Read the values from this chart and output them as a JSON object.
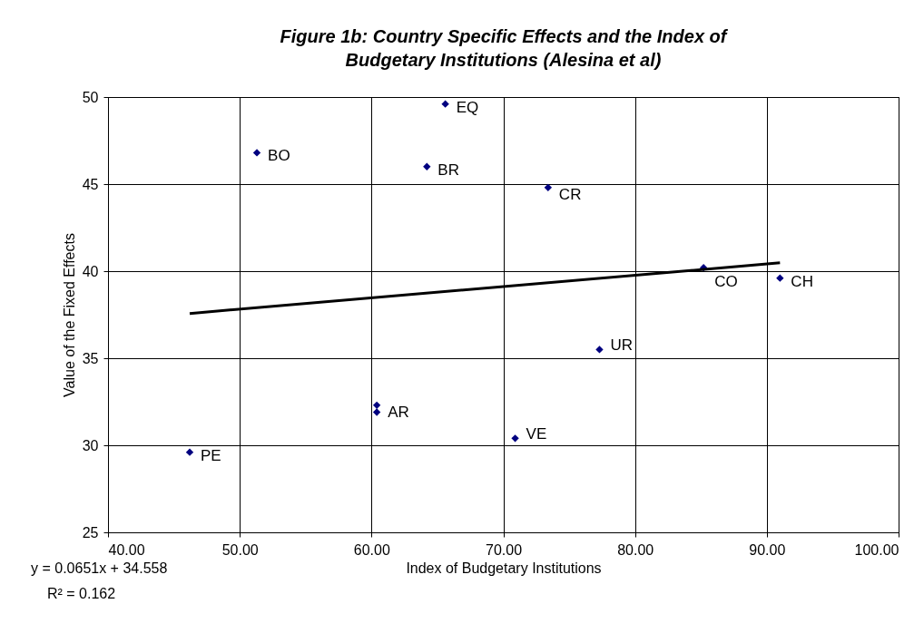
{
  "chart_data": {
    "type": "scatter",
    "title": "Figure 1b: Country Specific Effects and the Index of  Budgetary Institutions (Alesina et al)",
    "xlabel": "Index of Budgetary Institutions",
    "ylabel": "Value of the Fixed Effects",
    "series": [
      {
        "type": "scatter",
        "color": "#000080",
        "marker": "diamond",
        "x": [
          65.6,
          51.3,
          64.2,
          73.4,
          85.2,
          91.0,
          77.3,
          60.4,
          60.4,
          70.9,
          46.2
        ],
        "values": [
          49.6,
          46.8,
          46.0,
          44.8,
          40.2,
          39.6,
          35.5,
          32.3,
          31.9,
          30.4,
          29.6
        ]
      },
      {
        "type": "line",
        "color": "#000000",
        "line_style": "solid",
        "x": [
          46.2,
          91.0
        ],
        "values": [
          37.57,
          40.48
        ]
      }
    ],
    "xlim": [
      40,
      100
    ],
    "xticks": [
      {
        "value": 40,
        "label": "40.00"
      },
      {
        "value": 50,
        "label": "50.00"
      },
      {
        "value": 60,
        "label": "60.00"
      },
      {
        "value": 70,
        "label": "70.00"
      },
      {
        "value": 80,
        "label": "80.00"
      },
      {
        "value": 90,
        "label": "90.00"
      },
      {
        "value": 100,
        "label": "100.00"
      }
    ],
    "ylim": [
      25,
      50
    ],
    "yticks": [
      25,
      30,
      35,
      40,
      45,
      50
    ],
    "grid": true,
    "annotations": [
      {
        "text": "EQ",
        "x": 65.6,
        "y": 49.6
      },
      {
        "text": "BO",
        "x": 51.3,
        "y": 46.8
      },
      {
        "text": "BR",
        "x": 64.2,
        "y": 46.0
      },
      {
        "text": "CR",
        "x": 73.4,
        "y": 44.8
      },
      {
        "text": "CO",
        "x": 85.2,
        "y": 40.2
      },
      {
        "text": "CH",
        "x": 91.0,
        "y": 39.6
      },
      {
        "text": "UR",
        "x": 77.3,
        "y": 35.5
      },
      {
        "text": "AR",
        "x": 60.4,
        "y": 32.1
      },
      {
        "text": "VE",
        "x": 70.9,
        "y": 30.4
      },
      {
        "text": "PE",
        "x": 46.2,
        "y": 29.6
      },
      "y = 0.0651x + 34.558",
      "R² = 0.162"
    ]
  }
}
